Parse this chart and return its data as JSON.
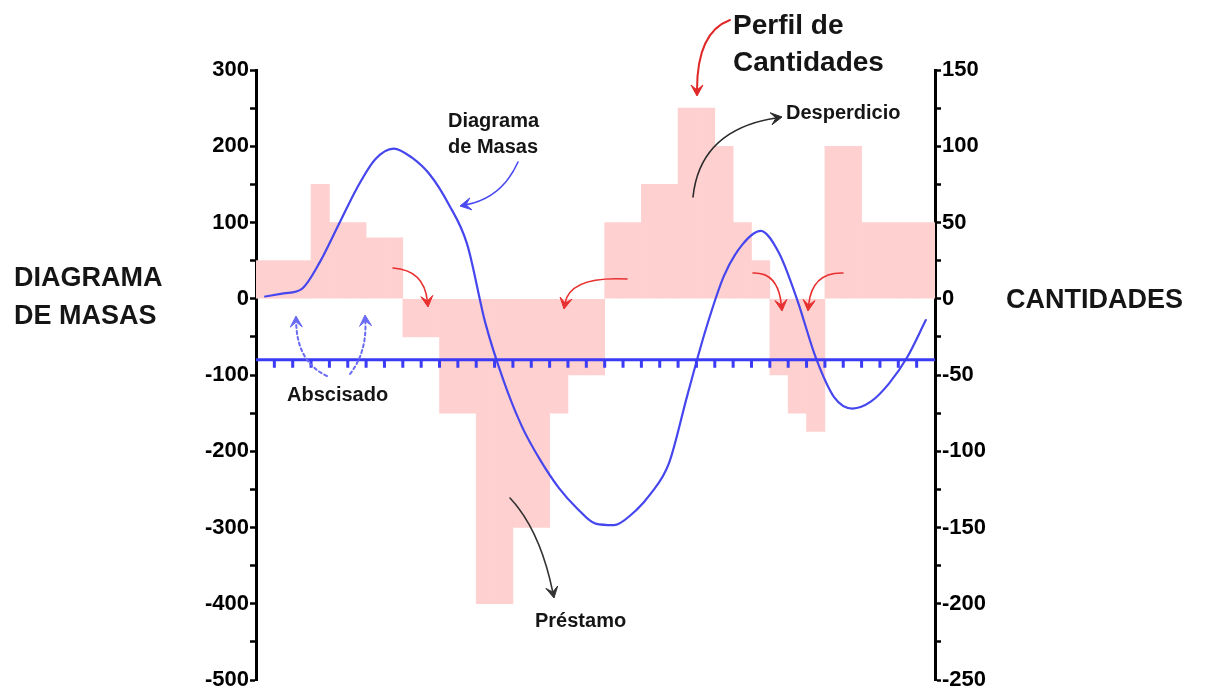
{
  "chart_data": {
    "type": "bar",
    "categories": [
      null,
      null,
      null,
      null,
      null,
      null,
      null,
      null,
      null,
      null,
      null,
      null,
      null,
      null,
      null,
      null,
      null,
      null,
      null,
      null,
      null,
      null,
      null,
      null,
      null,
      null,
      null,
      null,
      null,
      null,
      null,
      null,
      null,
      null,
      null,
      null,
      null
    ],
    "ylabel": "DIAGRAMA DE MASAS",
    "y2label": "CANTIDADES",
    "ylim": [
      -500,
      300
    ],
    "yticks": [
      300,
      {
        "value": 250,
        "label": null
      },
      200,
      {
        "value": 150,
        "label": null
      },
      100,
      {
        "value": 50,
        "label": null
      },
      0,
      {
        "value": -50,
        "label": null
      },
      -100,
      {
        "value": -150,
        "label": null
      },
      -200,
      {
        "value": -250,
        "label": null
      },
      -300,
      {
        "value": -350,
        "label": null
      },
      -400,
      {
        "value": -450,
        "label": null
      },
      -500
    ],
    "y2lim": [
      -250,
      150
    ],
    "y2ticks": [
      150,
      {
        "value": 125,
        "label": null
      },
      100,
      {
        "value": 75,
        "label": null
      },
      50,
      {
        "value": 25,
        "label": null
      },
      0,
      {
        "value": -25,
        "label": null
      },
      -50,
      {
        "value": -75,
        "label": null
      },
      -100,
      {
        "value": -125,
        "label": null
      },
      -150,
      {
        "value": -175,
        "label": null
      },
      -200,
      {
        "value": -225,
        "label": null
      },
      -250
    ],
    "series": [
      {
        "axis": "y2",
        "color": "#ffd0d0",
        "values": [
          25,
          25,
          25,
          75,
          50,
          50,
          40,
          40,
          -25,
          -25,
          -75,
          -75,
          -200,
          -200,
          -150,
          -150,
          -75,
          -50,
          -50,
          50,
          50,
          75,
          75,
          125,
          125,
          100,
          50,
          25,
          -50,
          -75,
          -87,
          100,
          100,
          50,
          50,
          50,
          50
        ]
      },
      {
        "type": "line",
        "color": "#4646ee",
        "values": [
          3,
          7,
          13,
          49,
          97,
          145,
          183,
          197,
          185,
          162,
          124,
          72,
          -32,
          -108,
          -168,
          -212,
          -248,
          -275,
          -295,
          -297,
          -282,
          -256,
          -216,
          -127,
          -41,
          30,
          71,
          89,
          60,
          -2,
          -77,
          -129,
          -144,
          -135,
          -111,
          -76,
          -28
        ]
      }
    ],
    "ref_lines": [
      {
        "axis": "y",
        "value": -80,
        "color": "#3b3bf5"
      }
    ],
    "annotations": [
      "Perfil de Cantidades",
      "Desperdicio",
      "Diagrama de Masas",
      "Abscisado",
      "Préstamo"
    ],
    "tick_labels": "y"
  }
}
